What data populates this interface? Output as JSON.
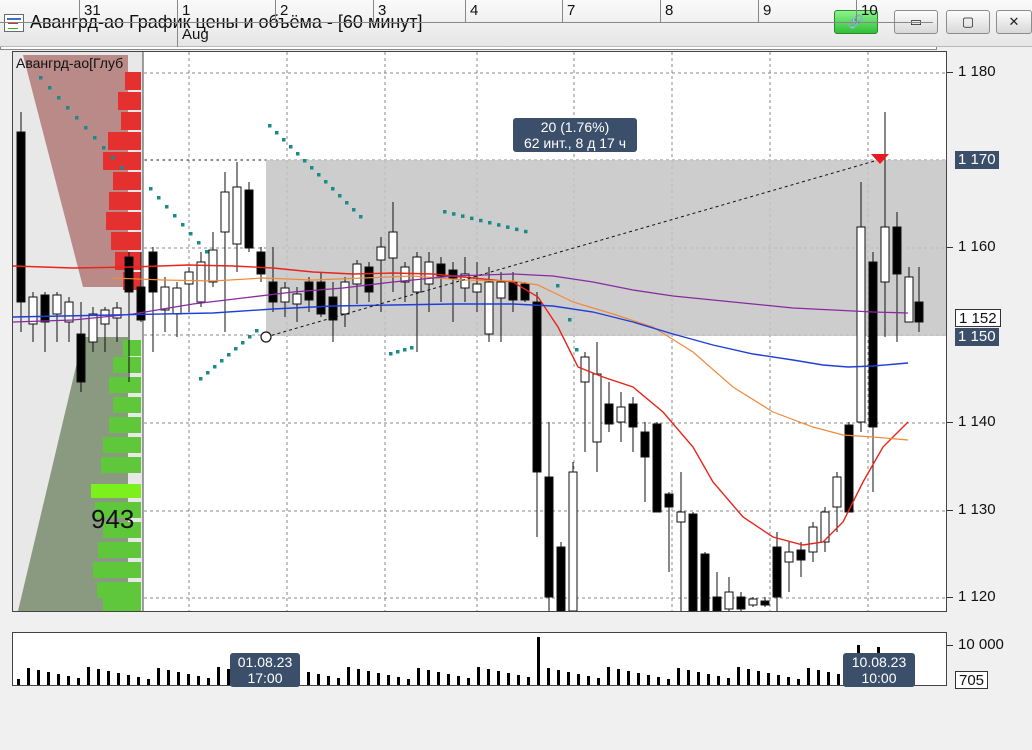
{
  "window": {
    "title": "Авангрд-ао График цены и объёма - [60 минут]",
    "buttons": {
      "link": "🔗",
      "minimize": "▭",
      "maximize": "▢",
      "close": "✕"
    }
  },
  "depth_panel": {
    "label": "Авангрд-ао[Глуб",
    "highlight_value": "943"
  },
  "price_axis": {
    "ticks": [
      "1 180",
      "1 170",
      "1 160",
      "1 150",
      "1 140",
      "1 130",
      "1 120"
    ],
    "boxes": [
      "1 170",
      "1 152",
      "1 150"
    ]
  },
  "volume_axis": {
    "tick": "10 000",
    "current": "705"
  },
  "measure_tool": {
    "line1": "20 (1.76%)",
    "line2": "62 инт., 8 д 17 ч"
  },
  "crosshair_tags": [
    {
      "date": "01.08.23",
      "time": "17:00"
    },
    {
      "date": "10.08.23",
      "time": "10:00"
    }
  ],
  "date_axis": {
    "days": [
      "31",
      "1",
      "2",
      "3",
      "4",
      "7",
      "8",
      "9",
      "10"
    ],
    "month": "Aug"
  },
  "colors": {
    "bull_candle": "#ffffff",
    "bear_candle": "#000000",
    "ma_red": "#e8251a",
    "ma_orange": "#f08a3a",
    "ma_purple": "#8a2aa0",
    "ma_blue": "#1f3fd6",
    "sar_dots": "#1a8a8a",
    "ask_depth": "#e53030",
    "bid_depth": "#5fc73a",
    "range_shade": "#c4c4c4",
    "tag_bg": "#3b4f6b"
  }
}
